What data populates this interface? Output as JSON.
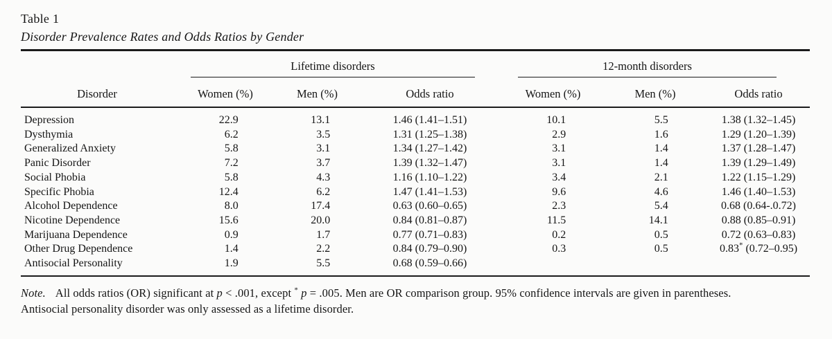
{
  "caption": {
    "number": "Table 1",
    "title": "Disorder Prevalence Rates and Odds Ratios by Gender"
  },
  "chart_data": {
    "type": "table",
    "title": "Disorder Prevalence Rates and Odds Ratios by Gender",
    "group_headers": [
      {
        "label": "Lifetime disorders",
        "span_columns": [
          "Women (%)",
          "Men (%)",
          "Odds ratio"
        ]
      },
      {
        "label": "12-month disorders",
        "span_columns": [
          "Women (%)",
          "Men (%)",
          "Odds ratio"
        ]
      }
    ],
    "columns": [
      "Disorder",
      "Women (%)",
      "Men (%)",
      "Odds ratio",
      "Women (%)",
      "Men (%)",
      "Odds ratio"
    ],
    "rows": [
      [
        "Depression",
        "22.9",
        "13.1",
        "1.46 (1.41–1.51)",
        "10.1",
        "5.5",
        "1.38 (1.32–1.45)"
      ],
      [
        "Dysthymia",
        "6.2",
        "3.5",
        "1.31 (1.25–1.38)",
        "2.9",
        "1.6",
        "1.29 (1.20–1.39)"
      ],
      [
        "Generalized Anxiety",
        "5.8",
        "3.1",
        "1.34 (1.27–1.42)",
        "3.1",
        "1.4",
        "1.37 (1.28–1.47)"
      ],
      [
        "Panic Disorder",
        "7.2",
        "3.7",
        "1.39 (1.32–1.47)",
        "3.1",
        "1.4",
        "1.39 (1.29–1.49)"
      ],
      [
        "Social Phobia",
        "5.8",
        "4.3",
        "1.16 (1.10–1.22)",
        "3.4",
        "2.1",
        "1.22 (1.15–1.29)"
      ],
      [
        "Specific Phobia",
        "12.4",
        "6.2",
        "1.47 (1.41–1.53)",
        "9.6",
        "4.6",
        "1.46 (1.40–1.53)"
      ],
      [
        "Alcohol Dependence",
        "8.0",
        "17.4",
        "0.63 (0.60–0.65)",
        "2.3",
        "5.4",
        "0.68 (0.64-.0.72)"
      ],
      [
        "Nicotine Dependence",
        "15.6",
        "20.0",
        "0.84 (0.81–0.87)",
        "11.5",
        "14.1",
        "0.88 (0.85–0.91)"
      ],
      [
        "Marijuana Dependence",
        "0.9",
        "1.7",
        "0.77 (0.71–0.83)",
        "0.2",
        "0.5",
        "0.72 (0.63–0.83)"
      ],
      [
        "Other Drug Dependence",
        "1.4",
        "2.2",
        "0.84 (0.79–0.90)",
        "0.3",
        "0.5",
        "0.83* (0.72–0.95)"
      ],
      [
        "Antisocial Personality",
        "1.9",
        "5.5",
        "0.68 (0.59–0.66)",
        "",
        "",
        ""
      ]
    ]
  },
  "header": {
    "spanner_lifetime": "Lifetime disorders",
    "spanner_12month": "12-month disorders",
    "col_disorder": "Disorder",
    "col_women": "Women (%)",
    "col_men": "Men (%)",
    "col_odds": "Odds ratio"
  },
  "note": {
    "segments": [
      {
        "text": "Note.",
        "style": "italic"
      },
      {
        "text": "",
        "style": "gap"
      },
      {
        "text": "All odds ratios (OR) significant at ",
        "style": "normal"
      },
      {
        "text": "p",
        "style": "italic"
      },
      {
        "text": " < .001, except ",
        "style": "normal"
      },
      {
        "text": "*",
        "style": "sup"
      },
      {
        "text": " ",
        "style": "normal"
      },
      {
        "text": "p",
        "style": "italic"
      },
      {
        "text": " = .005. Men are OR comparison group. 95% confidence intervals are given in parentheses.",
        "style": "normal"
      }
    ],
    "line2": "Antisocial personality disorder was only assessed as a lifetime disorder."
  },
  "colors": {
    "text": "#151515",
    "rule": "#1a1a1a",
    "background": "#fbfbfa"
  }
}
